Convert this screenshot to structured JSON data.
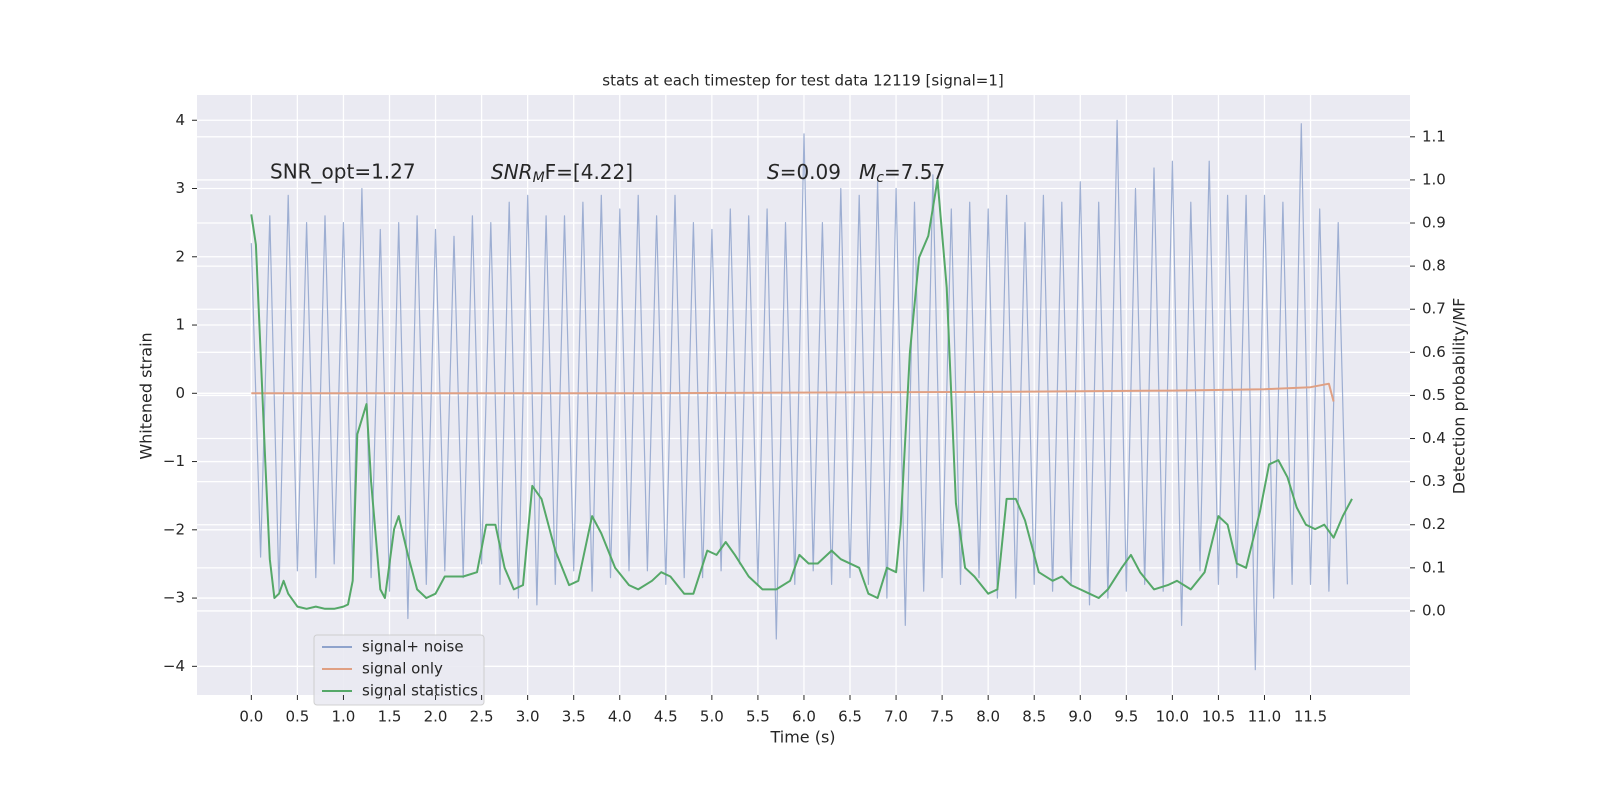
{
  "chart_data": {
    "type": "line",
    "title": "stats at each timestep for test data 12119 [signal=1]",
    "xlabel": "Time (s)",
    "ylabel": "Whitened strain",
    "y2label": "Detection probability/MF",
    "xlim": [
      -0.59,
      12.58
    ],
    "ylim": [
      -4.42,
      4.37
    ],
    "y2lim": [
      -0.195,
      1.197
    ],
    "grid": true,
    "legend": "lower left",
    "xticks": [
      {
        "value": 0,
        "label": "0.0"
      },
      0.5,
      {
        "value": 1,
        "label": "1.0"
      },
      1.5,
      {
        "value": 2,
        "label": "2.0"
      },
      2.5,
      {
        "value": 3,
        "label": "3.0"
      },
      3.5,
      {
        "value": 4,
        "label": "4.0"
      },
      4.5,
      {
        "value": 5,
        "label": "5.0"
      },
      5.5,
      {
        "value": 6,
        "label": "6.0"
      },
      6.5,
      {
        "value": 7,
        "label": "7.0"
      },
      7.5,
      {
        "value": 8,
        "label": "8.0"
      },
      8.5,
      {
        "value": 9,
        "label": "9.0"
      },
      9.5,
      {
        "value": 10,
        "label": "10.0"
      },
      10.5,
      {
        "value": 11,
        "label": "11.0"
      },
      11.5
    ],
    "yticks": [
      {
        "value": -4,
        "label": "−4"
      },
      {
        "value": -3,
        "label": "−3"
      },
      {
        "value": -2,
        "label": "−2"
      },
      {
        "value": -1,
        "label": "−1"
      },
      0,
      1,
      2,
      3,
      4
    ],
    "y2ticks": [
      {
        "value": 0,
        "label": "0.0"
      },
      0.1,
      0.2,
      0.3,
      0.4,
      0.5,
      0.6,
      0.7,
      0.8,
      0.9,
      {
        "value": 1,
        "label": "1.0"
      },
      1.1
    ],
    "annotations": [
      {
        "text": "SNR_opt=1.27"
      },
      {
        "base": "SNR",
        "sub": "M",
        "rest": "F=[4.22]"
      },
      {
        "base": "S",
        "rest": "=0.09"
      },
      {
        "base": "M",
        "sub": "c",
        "rest": "=7.57"
      }
    ],
    "series": [
      {
        "name": "signal+ noise",
        "color": "#8fa3cc",
        "x": [
          0,
          0.1,
          0.2,
          0.3,
          0.4,
          0.5,
          0.6,
          0.7,
          0.8,
          0.9,
          1,
          1.1,
          1.2,
          1.3,
          1.4,
          1.5,
          1.6,
          1.7,
          1.8,
          1.9,
          2,
          2.1,
          2.2,
          2.3,
          2.4,
          2.5,
          2.6,
          2.7,
          2.8,
          2.9,
          3,
          3.1,
          3.2,
          3.3,
          3.4,
          3.5,
          3.6,
          3.7,
          3.8,
          3.9,
          4,
          4.1,
          4.2,
          4.3,
          4.4,
          4.5,
          4.6,
          4.7,
          4.8,
          4.9,
          5,
          5.1,
          5.2,
          5.3,
          5.4,
          5.5,
          5.6,
          5.7,
          5.8,
          5.9,
          6,
          6.1,
          6.2,
          6.3,
          6.4,
          6.5,
          6.6,
          6.7,
          6.8,
          6.9,
          7,
          7.1,
          7.2,
          7.3,
          7.4,
          7.5,
          7.6,
          7.7,
          7.8,
          7.9,
          8,
          8.1,
          8.2,
          8.3,
          8.4,
          8.5,
          8.6,
          8.7,
          8.8,
          8.9,
          9,
          9.1,
          9.2,
          9.3,
          9.4,
          9.5,
          9.6,
          9.7,
          9.8,
          9.9,
          10,
          10.1,
          10.2,
          10.3,
          10.4,
          10.5,
          10.6,
          10.7,
          10.8,
          10.9,
          11,
          11.1,
          11.2,
          11.3,
          11.4,
          11.5,
          11.6,
          11.7,
          11.8,
          11.9
        ],
        "values": [
          2.2,
          -2.4,
          2.6,
          -2.9,
          2.9,
          -2.6,
          2.5,
          -2.7,
          2.6,
          -2.5,
          2.5,
          -2.6,
          3.0,
          -2.7,
          2.4,
          -2.9,
          2.5,
          -3.3,
          2.6,
          -2.8,
          2.4,
          -2.6,
          2.3,
          -2.7,
          2.6,
          -2.5,
          2.5,
          -2.8,
          2.8,
          -3.0,
          2.9,
          -3.1,
          2.6,
          -2.8,
          2.6,
          -2.6,
          2.8,
          -2.9,
          2.9,
          -2.7,
          2.7,
          -2.6,
          2.9,
          -2.6,
          2.6,
          -2.8,
          2.9,
          -2.7,
          2.5,
          -2.7,
          2.4,
          -2.6,
          2.7,
          -2.5,
          2.6,
          -2.8,
          2.7,
          -3.6,
          2.5,
          -2.8,
          3.8,
          -2.6,
          2.5,
          -2.8,
          3.0,
          -2.7,
          2.9,
          -2.8,
          3.1,
          -3.0,
          3.0,
          -3.4,
          2.8,
          -2.9,
          3.2,
          -2.7,
          2.7,
          -2.8,
          2.8,
          -2.7,
          2.7,
          -3.0,
          2.9,
          -3.0,
          2.5,
          -2.8,
          2.9,
          -2.9,
          2.8,
          -2.8,
          3.1,
          -3.1,
          2.8,
          -3.0,
          4.0,
          -2.9,
          3.0,
          -2.8,
          3.3,
          -2.9,
          3.4,
          -3.4,
          2.8,
          -2.6,
          3.4,
          -2.8,
          2.9,
          -2.7,
          2.9,
          -4.05,
          2.9,
          -3.0,
          2.8,
          -2.8,
          3.95,
          -2.8,
          2.7,
          -2.9,
          2.5,
          -2.8
        ]
      },
      {
        "name": "signal only",
        "color": "#e0a083",
        "x": [
          0,
          4,
          8,
          10,
          11,
          11.5,
          11.7,
          11.75
        ],
        "values": [
          0,
          0,
          0.02,
          0.04,
          0.06,
          0.09,
          0.14,
          -0.12
        ]
      },
      {
        "name": "signal statistics",
        "color": "#55a868",
        "axis": "y2",
        "x": [
          0,
          0.05,
          0.1,
          0.15,
          0.2,
          0.25,
          0.3,
          0.35,
          0.4,
          0.5,
          0.6,
          0.7,
          0.8,
          0.9,
          1,
          1.05,
          1.1,
          1.15,
          1.25,
          1.3,
          1.4,
          1.45,
          1.55,
          1.6,
          1.7,
          1.8,
          1.9,
          2,
          2.1,
          2.2,
          2.3,
          2.45,
          2.55,
          2.65,
          2.75,
          2.85,
          2.95,
          3.05,
          3.15,
          3.3,
          3.45,
          3.55,
          3.7,
          3.8,
          3.95,
          4.1,
          4.2,
          4.35,
          4.45,
          4.55,
          4.7,
          4.8,
          4.95,
          5.05,
          5.15,
          5.25,
          5.4,
          5.55,
          5.7,
          5.85,
          5.95,
          6.05,
          6.15,
          6.3,
          6.4,
          6.6,
          6.7,
          6.8,
          6.9,
          7,
          7.05,
          7.15,
          7.25,
          7.35,
          7.45,
          7.55,
          7.65,
          7.75,
          7.85,
          8,
          8.1,
          8.2,
          8.3,
          8.4,
          8.55,
          8.7,
          8.8,
          8.9,
          9,
          9.1,
          9.2,
          9.3,
          9.45,
          9.55,
          9.65,
          9.8,
          9.95,
          10.05,
          10.2,
          10.35,
          10.5,
          10.6,
          10.7,
          10.8,
          10.95,
          11.05,
          11.15,
          11.25,
          11.35,
          11.45,
          11.55,
          11.65,
          11.75,
          11.85,
          11.95
        ],
        "values": [
          0.92,
          0.85,
          0.6,
          0.35,
          0.12,
          0.03,
          0.04,
          0.07,
          0.04,
          0.01,
          0.005,
          0.01,
          0.005,
          0.005,
          0.01,
          0.015,
          0.07,
          0.41,
          0.48,
          0.3,
          0.05,
          0.03,
          0.19,
          0.22,
          0.13,
          0.05,
          0.03,
          0.04,
          0.08,
          0.08,
          0.08,
          0.09,
          0.2,
          0.2,
          0.1,
          0.05,
          0.06,
          0.29,
          0.26,
          0.14,
          0.06,
          0.07,
          0.22,
          0.18,
          0.1,
          0.06,
          0.05,
          0.07,
          0.09,
          0.08,
          0.04,
          0.04,
          0.14,
          0.13,
          0.16,
          0.13,
          0.08,
          0.05,
          0.05,
          0.07,
          0.13,
          0.11,
          0.11,
          0.14,
          0.12,
          0.1,
          0.04,
          0.03,
          0.1,
          0.09,
          0.2,
          0.6,
          0.82,
          0.87,
          1.0,
          0.75,
          0.25,
          0.1,
          0.08,
          0.04,
          0.05,
          0.26,
          0.26,
          0.21,
          0.09,
          0.07,
          0.08,
          0.06,
          0.05,
          0.04,
          0.03,
          0.05,
          0.1,
          0.13,
          0.09,
          0.05,
          0.06,
          0.07,
          0.05,
          0.09,
          0.22,
          0.2,
          0.11,
          0.1,
          0.23,
          0.34,
          0.35,
          0.31,
          0.24,
          0.2,
          0.19,
          0.2,
          0.17,
          0.22,
          0.26
        ]
      }
    ]
  }
}
